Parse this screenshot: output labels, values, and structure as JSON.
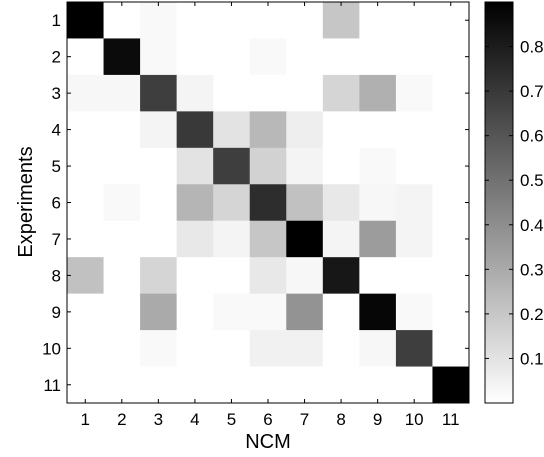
{
  "chart_data": {
    "type": "heatmap",
    "title": "",
    "xlabel": "NCM",
    "ylabel": "Experiments",
    "x_categories": [
      "1",
      "2",
      "3",
      "4",
      "5",
      "6",
      "7",
      "8",
      "9",
      "10",
      "11"
    ],
    "y_categories": [
      "1",
      "2",
      "3",
      "4",
      "5",
      "6",
      "7",
      "8",
      "9",
      "10",
      "11"
    ],
    "values": [
      [
        0.92,
        0.0,
        0.02,
        0.0,
        0.0,
        0.0,
        0.0,
        0.2,
        0.0,
        0.0,
        0.0
      ],
      [
        0.0,
        0.86,
        0.02,
        0.0,
        0.0,
        0.02,
        0.0,
        0.0,
        0.0,
        0.0,
        0.0
      ],
      [
        0.03,
        0.03,
        0.68,
        0.04,
        0.0,
        0.0,
        0.0,
        0.15,
        0.28,
        0.02,
        0.0
      ],
      [
        0.0,
        0.0,
        0.04,
        0.7,
        0.1,
        0.25,
        0.06,
        0.0,
        0.0,
        0.0,
        0.0
      ],
      [
        0.0,
        0.0,
        0.0,
        0.1,
        0.68,
        0.16,
        0.04,
        0.0,
        0.02,
        0.0,
        0.0
      ],
      [
        0.0,
        0.02,
        0.0,
        0.26,
        0.15,
        0.74,
        0.22,
        0.08,
        0.03,
        0.04,
        0.0
      ],
      [
        0.0,
        0.0,
        0.0,
        0.08,
        0.04,
        0.2,
        0.95,
        0.04,
        0.35,
        0.04,
        0.0
      ],
      [
        0.22,
        0.0,
        0.15,
        0.0,
        0.0,
        0.08,
        0.03,
        0.82,
        0.0,
        0.0,
        0.0
      ],
      [
        0.0,
        0.0,
        0.3,
        0.0,
        0.02,
        0.02,
        0.38,
        0.0,
        0.88,
        0.02,
        0.0
      ],
      [
        0.0,
        0.0,
        0.02,
        0.0,
        0.0,
        0.05,
        0.05,
        0.0,
        0.03,
        0.68,
        0.0
      ],
      [
        0.0,
        0.0,
        0.0,
        0.0,
        0.0,
        0.0,
        0.0,
        0.0,
        0.0,
        0.0,
        0.96
      ]
    ],
    "colorbar": {
      "range": [
        0,
        0.9
      ],
      "ticks": [
        0.1,
        0.2,
        0.3,
        0.4,
        0.5,
        0.6,
        0.7,
        0.8
      ],
      "tick_labels": [
        "0.1",
        "0.2",
        "0.3",
        "0.4",
        "0.5",
        "0.6",
        "0.7",
        "0.8"
      ],
      "colormap": "gray-reversed"
    },
    "grid": false
  }
}
